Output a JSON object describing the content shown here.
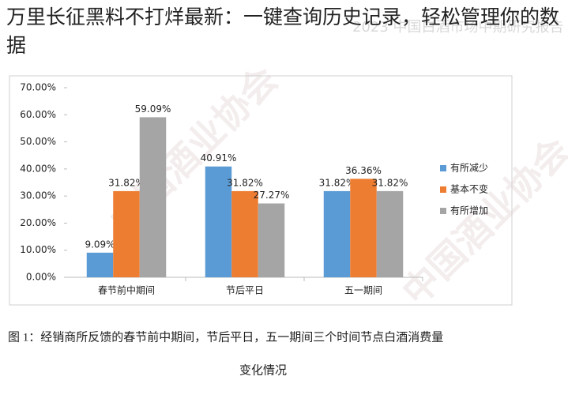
{
  "header": {
    "title": "万里长征黑料不打烊最新：一键查询历史记录，轻松管理你的数据",
    "overlay": "2023 中国白酒市场中期研究报告"
  },
  "watermark": "中国酒业协会",
  "chart_data": {
    "type": "bar",
    "categories": [
      "春节前中期间",
      "节后平日",
      "五一期间"
    ],
    "series": [
      {
        "name": "有所减少",
        "color": "#5b9bd5",
        "values": [
          9.09,
          40.91,
          31.82
        ],
        "value_labels": [
          "9.09%",
          "40.91%",
          "31.82%"
        ]
      },
      {
        "name": "基本不变",
        "color": "#ed7d31",
        "values": [
          31.82,
          31.82,
          36.36
        ],
        "value_labels": [
          "31.82%",
          "31.82%",
          "36.36%"
        ]
      },
      {
        "name": "有所增加",
        "color": "#a5a5a5",
        "values": [
          59.09,
          27.27,
          31.82
        ],
        "value_labels": [
          "59.09%",
          "27.27%",
          "31.82%"
        ]
      }
    ],
    "ylim": [
      0,
      70
    ],
    "yticks": [
      {
        "value": 0,
        "label": "0.00%"
      },
      {
        "value": 10,
        "label": "10.00%"
      },
      {
        "value": 20,
        "label": "20.00%"
      },
      {
        "value": 30,
        "label": "30.00%"
      },
      {
        "value": 40,
        "label": "40.00%"
      },
      {
        "value": 50,
        "label": "50.00%"
      },
      {
        "value": 60,
        "label": "60.00%"
      },
      {
        "value": 70,
        "label": "70.00%"
      }
    ],
    "grid": false,
    "legend": "right"
  },
  "caption": [
    "图 1：经销商所反馈的春节前中期间，节后平日，五一期间三个时间节点白酒消费量",
    "变化情况"
  ]
}
